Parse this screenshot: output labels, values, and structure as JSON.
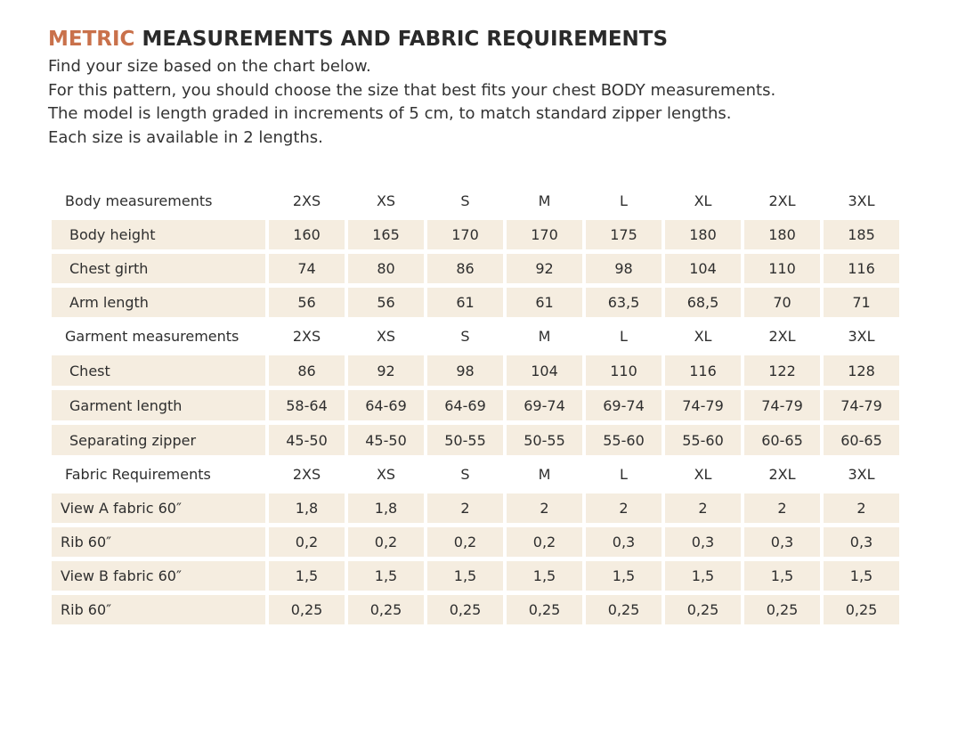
{
  "title": {
    "accent": "METRIC",
    "rest": " MEASUREMENTS AND FABRIC REQUIREMENTS"
  },
  "intro": [
    "Find your size based on the chart below.",
    "For this pattern, you should choose the size that best fits your chest BODY measurements.",
    "The model is length graded in increments of 5 cm, to match standard zipper lengths.",
    "Each size is available in 2 lengths."
  ],
  "sizes": [
    "2XS",
    "XS",
    "S",
    "M",
    "L",
    "XL",
    "2XL",
    "3XL"
  ],
  "sections": [
    {
      "header": "Body measurements",
      "rows": [
        {
          "label": "Body height",
          "values": [
            "160",
            "165",
            "170",
            "170",
            "175",
            "180",
            "180",
            "185"
          ]
        },
        {
          "label": "Chest girth",
          "values": [
            "74",
            "80",
            "86",
            "92",
            "98",
            "104",
            "110",
            "116"
          ]
        },
        {
          "label": "Arm length",
          "values": [
            "56",
            "56",
            "61",
            "61",
            "63,5",
            "68,5",
            "70",
            "71"
          ]
        }
      ]
    },
    {
      "header": "Garment measurements",
      "rows": [
        {
          "label": "Chest",
          "values": [
            "86",
            "92",
            "98",
            "104",
            "110",
            "116",
            "122",
            "128"
          ]
        },
        {
          "label": "Garment length",
          "values": [
            "58-64",
            "64-69",
            "64-69",
            "69-74",
            "69-74",
            "74-79",
            "74-79",
            "74-79"
          ]
        },
        {
          "label": "Separating zipper",
          "values": [
            "45-50",
            "45-50",
            "50-55",
            "50-55",
            "55-60",
            "55-60",
            "60-65",
            "60-65"
          ]
        }
      ]
    },
    {
      "header": "Fabric Requirements",
      "rows": [
        {
          "label": "View A fabric 60″",
          "values": [
            "1,8",
            "1,8",
            "2",
            "2",
            "2",
            "2",
            "2",
            "2"
          ]
        },
        {
          "label": "Rib 60″",
          "values": [
            "0,2",
            "0,2",
            "0,2",
            "0,2",
            "0,3",
            "0,3",
            "0,3",
            "0,3"
          ]
        },
        {
          "label": "View B fabric 60″",
          "values": [
            "1,5",
            "1,5",
            "1,5",
            "1,5",
            "1,5",
            "1,5",
            "1,5",
            "1,5"
          ]
        },
        {
          "label": "Rib 60″",
          "values": [
            "0,25",
            "0,25",
            "0,25",
            "0,25",
            "0,25",
            "0,25",
            "0,25",
            "0,25"
          ]
        }
      ]
    }
  ],
  "colors": {
    "accent": "#c9714b",
    "row_background": "#f5ede0",
    "text": "#2b2b2b"
  }
}
